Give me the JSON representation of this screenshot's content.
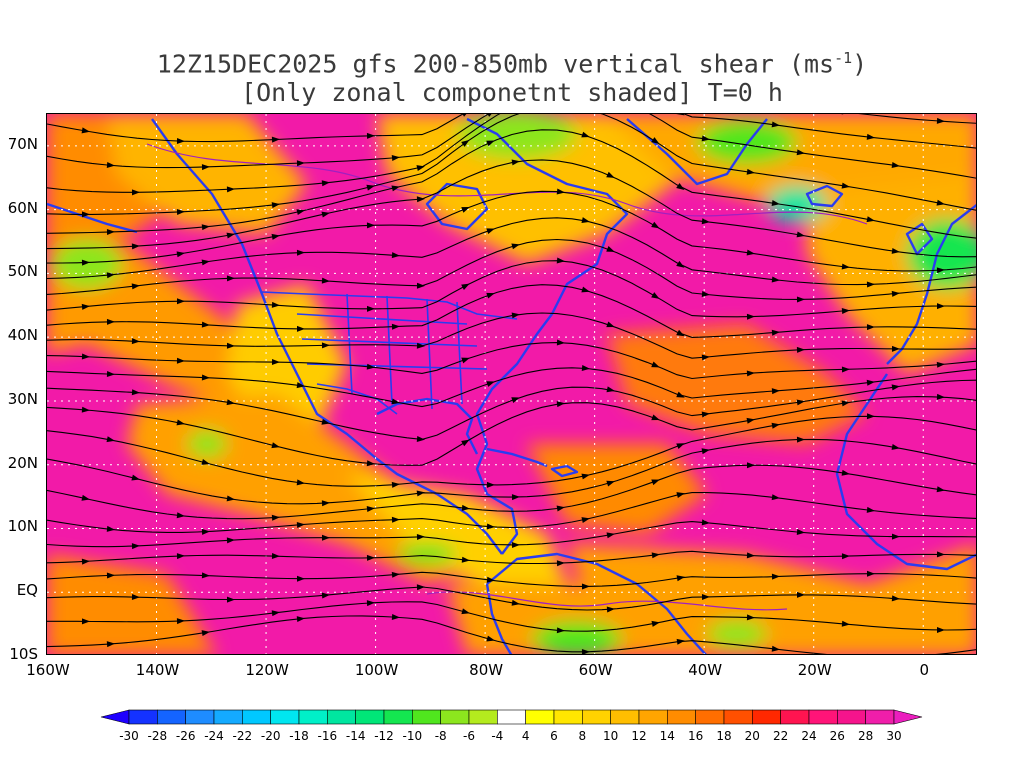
{
  "title": {
    "line1_prefix": "12Z15DEC2025 gfs 200-850mb vertical shear (ms",
    "line1_superscript": "-1",
    "line1_suffix": ")",
    "line2": "[Only zonal componetnt shaded] T=0 h"
  },
  "map": {
    "lat_labels": [
      "70N",
      "60N",
      "50N",
      "40N",
      "30N",
      "20N",
      "10N",
      "EQ",
      "10S"
    ],
    "lon_labels": [
      "160W",
      "140W",
      "120W",
      "100W",
      "80W",
      "60W",
      "40W",
      "20W",
      "0"
    ],
    "lat_range": [
      -10,
      75
    ],
    "lon_range": [
      -160,
      10
    ],
    "coastline_color": "#2a3cf0",
    "streamline_color": "#000000",
    "contour_color": "#a020c0",
    "grid": "dotted white"
  },
  "colorbar": {
    "tick_labels": [
      "-30",
      "-28",
      "-26",
      "-24",
      "-22",
      "-20",
      "-18",
      "-16",
      "-14",
      "-12",
      "-10",
      "-8",
      "-6",
      "-4",
      "4",
      "6",
      "8",
      "10",
      "12",
      "14",
      "16",
      "18",
      "20",
      "22",
      "24",
      "26",
      "28",
      "30"
    ],
    "colors": [
      "#1e00ff",
      "#1432ff",
      "#1464ff",
      "#1e8cff",
      "#14aaff",
      "#00c8ff",
      "#00e6f0",
      "#00f0c8",
      "#00e6a0",
      "#00e678",
      "#14e650",
      "#50e61e",
      "#8ce61e",
      "#b4eb1e",
      "#ffffff",
      "#ffff00",
      "#ffe600",
      "#ffd200",
      "#ffbe00",
      "#ffa500",
      "#ff8c00",
      "#ff6e00",
      "#ff5000",
      "#ff2800",
      "#ff1450",
      "#ff1478",
      "#f5148c",
      "#f01eaa",
      "#eb1ebe"
    ]
  }
}
